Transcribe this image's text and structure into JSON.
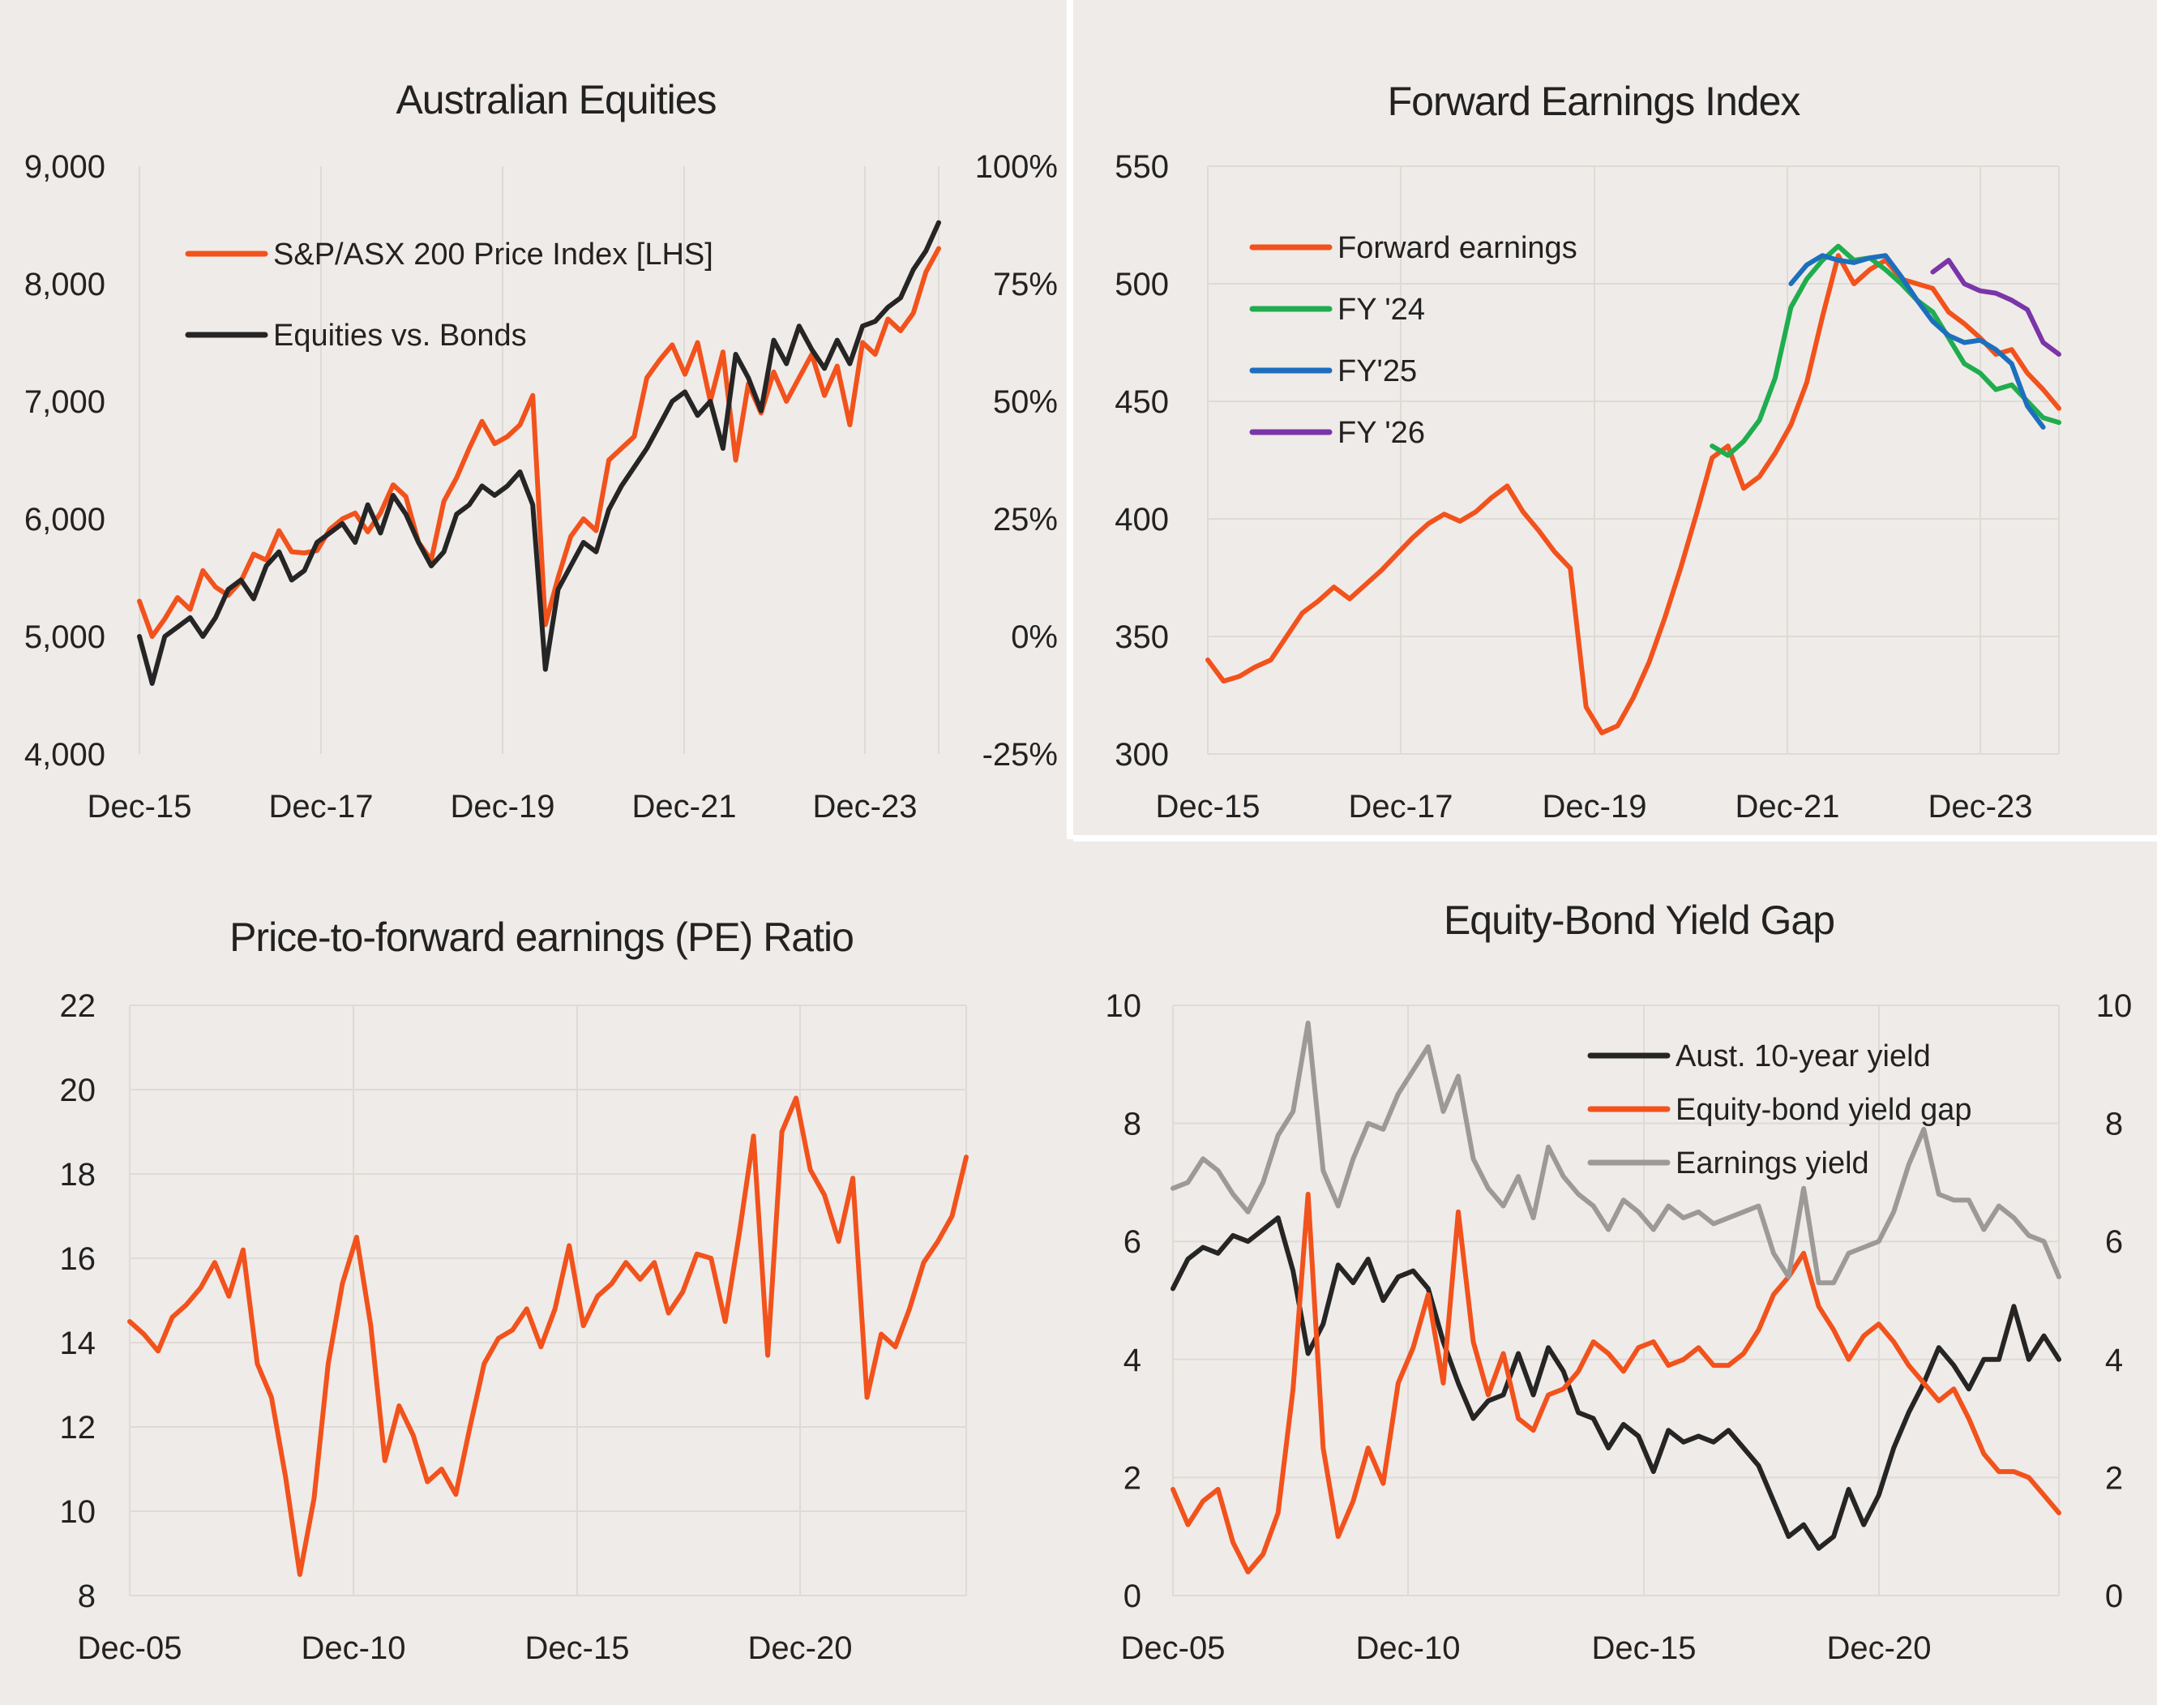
{
  "chart_data": [
    {
      "type": "line",
      "title": "Australian Equities",
      "x_tick_labels": [
        "Dec-15",
        "Dec-17",
        "Dec-19",
        "Dec-21",
        "Dec-23"
      ],
      "y_tick_labels": [
        "4,000",
        "5,000",
        "6,000",
        "7,000",
        "8,000",
        "9,000"
      ],
      "y2_tick_labels": [
        "-25%",
        "0%",
        "25%",
        "50%",
        "75%",
        "100%"
      ],
      "ylim": [
        4000,
        9000
      ],
      "y2lim": [
        -25,
        100
      ],
      "y2_unit": "%",
      "x_start": "Dec-15",
      "x_end": "Jun-24",
      "grid": "vertical",
      "legend": "top-left",
      "series": [
        {
          "name": "S&P/ASX 200 Price Index [LHS]",
          "color": "#f2521c",
          "axis": "left",
          "values": [
            5300,
            5000,
            5150,
            5330,
            5230,
            5560,
            5420,
            5350,
            5470,
            5700,
            5650,
            5900,
            5720,
            5710,
            5730,
            5910,
            6000,
            6050,
            5890,
            6050,
            6290,
            6190,
            5800,
            5650,
            6150,
            6350,
            6600,
            6830,
            6640,
            6700,
            6800,
            7050,
            5100,
            5500,
            5850,
            6000,
            5900,
            6500,
            6600,
            6700,
            7200,
            7350,
            7480,
            7230,
            7500,
            7000,
            7420,
            6500,
            7150,
            6900,
            7250,
            7000,
            7200,
            7400,
            7050,
            7300,
            6800,
            7500,
            7400,
            7700,
            7600,
            7750,
            8100,
            8300
          ]
        },
        {
          "name": "Equities vs. Bonds",
          "color": "#252525",
          "axis": "right",
          "values": [
            0,
            -10,
            0,
            2,
            4,
            0,
            4,
            10,
            12,
            8,
            15,
            18,
            12,
            14,
            20,
            22,
            24,
            20,
            28,
            22,
            30,
            26,
            20,
            15,
            18,
            26,
            28,
            32,
            30,
            32,
            35,
            28,
            -7,
            10,
            15,
            20,
            18,
            27,
            32,
            36,
            40,
            45,
            50,
            52,
            47,
            50,
            40,
            60,
            55,
            48,
            63,
            58,
            66,
            61,
            57,
            63,
            58,
            66,
            67,
            70,
            72,
            78,
            82,
            88
          ]
        }
      ]
    },
    {
      "type": "line",
      "title": "Forward Earnings Index",
      "x_tick_labels": [
        "Dec-15",
        "Dec-17",
        "Dec-19",
        "Dec-21",
        "Dec-23"
      ],
      "y_tick_labels": [
        "300",
        "350",
        "400",
        "450",
        "500",
        "550"
      ],
      "ylim": [
        300,
        550
      ],
      "x_start": "Dec-15",
      "x_end": "Jun-24",
      "grid": "both",
      "legend": "top-left",
      "series": [
        {
          "name": "Forward earnings",
          "color": "#f2521c",
          "values": [
            340,
            331,
            333,
            337,
            340,
            350,
            360,
            365,
            371,
            366,
            372,
            378,
            385,
            392,
            398,
            402,
            399,
            403,
            409,
            414,
            403,
            395,
            386,
            379,
            320,
            309,
            312,
            324,
            339,
            358,
            379,
            402,
            426,
            431,
            413,
            418,
            428,
            440,
            458,
            486,
            512,
            500,
            506,
            510,
            502,
            500,
            498,
            488,
            483,
            477,
            470,
            472,
            462,
            455,
            447
          ]
        },
        {
          "name": "FY '24",
          "color": "#1fad4e",
          "start_date": "Nov-21",
          "values": [
            431,
            427,
            433,
            442,
            460,
            490,
            502,
            510,
            516,
            510,
            511,
            506,
            500,
            493,
            488,
            477,
            466,
            462,
            455,
            457,
            450,
            443,
            441
          ]
        },
        {
          "name": "FY'25",
          "color": "#1d6fbd",
          "start_date": "Apr-22",
          "values": [
            500,
            508,
            512,
            510,
            509,
            511,
            512,
            503,
            493,
            484,
            478,
            475,
            476,
            472,
            466,
            448,
            439
          ]
        },
        {
          "name": "FY '26",
          "color": "#7a35a8",
          "start_date": "Jun-23",
          "values": [
            505,
            510,
            500,
            497,
            496,
            493,
            489,
            475,
            470
          ]
        }
      ]
    },
    {
      "type": "line",
      "title": "Price-to-forward earnings (PE) Ratio",
      "x_tick_labels": [
        "Dec-05",
        "Dec-10",
        "Dec-15",
        "Dec-20"
      ],
      "y_tick_labels": [
        "8",
        "10",
        "12",
        "14",
        "16",
        "18",
        "20",
        "22"
      ],
      "ylim": [
        8,
        22
      ],
      "x_start": "Dec-05",
      "x_end": "Sep-24",
      "grid": "both",
      "series": [
        {
          "color": "#f2521c",
          "values": [
            14.5,
            14.2,
            13.8,
            14.6,
            14.9,
            15.3,
            15.9,
            15.1,
            16.2,
            13.5,
            12.7,
            10.8,
            8.5,
            10.3,
            13.5,
            15.4,
            16.5,
            14.4,
            11.2,
            12.5,
            11.8,
            10.7,
            11.0,
            10.4,
            12.0,
            13.5,
            14.1,
            14.3,
            14.8,
            13.9,
            14.8,
            16.3,
            14.4,
            15.1,
            15.4,
            15.9,
            15.5,
            15.9,
            14.7,
            15.2,
            16.1,
            16.0,
            14.5,
            16.6,
            18.9,
            13.7,
            19.0,
            19.8,
            18.1,
            17.5,
            16.4,
            17.9,
            12.7,
            14.2,
            13.9,
            14.8,
            15.9,
            16.4,
            17.0,
            18.4
          ]
        }
      ]
    },
    {
      "type": "line",
      "title": "Equity-Bond Yield Gap",
      "x_tick_labels": [
        "Dec-05",
        "Dec-10",
        "Dec-15",
        "Dec-20"
      ],
      "y_tick_labels": [
        "0",
        "2",
        "4",
        "6",
        "8",
        "10"
      ],
      "y2_tick_labels": [
        "0",
        "2",
        "4",
        "6",
        "8",
        "10"
      ],
      "ylim": [
        0,
        10
      ],
      "y2lim": [
        0,
        10
      ],
      "x_start": "Dec-05",
      "x_end": "Sep-24",
      "grid": "both",
      "legend": "top-right",
      "series": [
        {
          "name": "Aust. 10-year yield",
          "color": "#252525",
          "values": [
            5.2,
            5.7,
            5.9,
            5.8,
            6.1,
            6.0,
            6.2,
            6.4,
            5.5,
            4.1,
            4.6,
            5.6,
            5.3,
            5.7,
            5.0,
            5.4,
            5.5,
            5.2,
            4.3,
            3.6,
            3.0,
            3.3,
            3.4,
            4.1,
            3.4,
            4.2,
            3.8,
            3.1,
            3.0,
            2.5,
            2.9,
            2.7,
            2.1,
            2.8,
            2.6,
            2.7,
            2.6,
            2.8,
            2.5,
            2.2,
            1.6,
            1.0,
            1.2,
            0.8,
            1.0,
            1.8,
            1.2,
            1.7,
            2.5,
            3.1,
            3.6,
            4.2,
            3.9,
            3.5,
            4.0,
            4.0,
            4.9,
            4.0,
            4.4,
            4.0
          ]
        },
        {
          "name": "Equity-bond yield gap",
          "color": "#f2521c",
          "values": [
            1.8,
            1.2,
            1.6,
            1.8,
            0.9,
            0.4,
            0.7,
            1.4,
            3.5,
            6.8,
            2.5,
            1.0,
            1.6,
            2.5,
            1.9,
            3.6,
            4.2,
            5.1,
            3.6,
            6.5,
            4.3,
            3.4,
            4.1,
            3.0,
            2.8,
            3.4,
            3.5,
            3.8,
            4.3,
            4.1,
            3.8,
            4.2,
            4.3,
            3.9,
            4.0,
            4.2,
            3.9,
            3.9,
            4.1,
            4.5,
            5.1,
            5.4,
            5.8,
            4.9,
            4.5,
            4.0,
            4.4,
            4.6,
            4.3,
            3.9,
            3.6,
            3.3,
            3.5,
            3.0,
            2.4,
            2.1,
            2.1,
            2.0,
            1.7,
            1.4
          ]
        },
        {
          "name": "Earnings yield",
          "color": "#9c9a99",
          "values": [
            6.9,
            7.0,
            7.4,
            7.2,
            6.8,
            6.5,
            7.0,
            7.8,
            8.2,
            9.7,
            7.2,
            6.6,
            7.4,
            8.0,
            7.9,
            8.5,
            8.9,
            9.3,
            8.2,
            8.8,
            7.4,
            6.9,
            6.6,
            7.1,
            6.4,
            7.6,
            7.1,
            6.8,
            6.6,
            6.2,
            6.7,
            6.5,
            6.2,
            6.6,
            6.4,
            6.5,
            6.3,
            6.4,
            6.5,
            6.6,
            5.8,
            5.4,
            6.9,
            5.3,
            5.3,
            5.8,
            5.9,
            6.0,
            6.5,
            7.3,
            7.9,
            6.8,
            6.7,
            6.7,
            6.2,
            6.6,
            6.4,
            6.1,
            6.0,
            5.4
          ]
        }
      ]
    }
  ]
}
